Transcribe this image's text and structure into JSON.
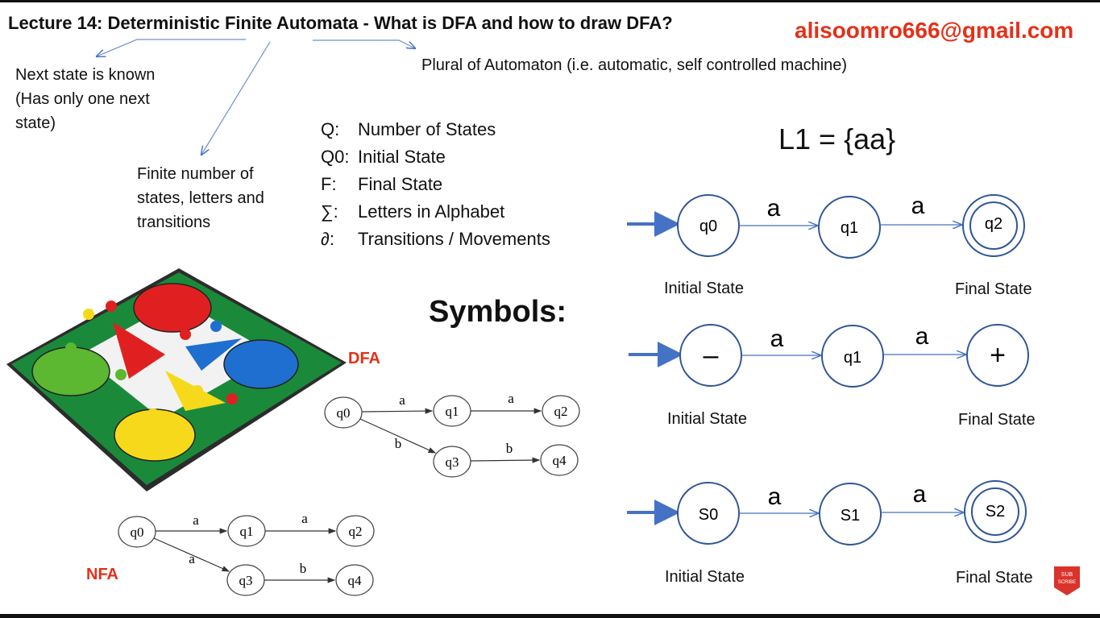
{
  "header": {
    "title": "Lecture 14: Deterministic Finite Automata - What is DFA and how to draw DFA?",
    "email": "alisoomro666@gmail.com"
  },
  "annotations": {
    "deterministic": "Next state is known (Has only one next state)",
    "finite": "Finite number of states, letters and transitions",
    "automata": "Plural of Automaton (i.e. automatic,  self controlled machine)"
  },
  "definitions": [
    {
      "symbol": "Q:",
      "text": "Number of States"
    },
    {
      "symbol": "Q0:",
      "text": "Initial State"
    },
    {
      "symbol": "F:",
      "text": "Final State"
    },
    {
      "symbol": "∑:",
      "text": "Letters in Alphabet"
    },
    {
      "symbol": "∂:",
      "text": "Transitions / Movements"
    }
  ],
  "language": "L1 = {aa}",
  "symbols_heading": "Symbols:",
  "dfa_label": "DFA",
  "nfa_label": "NFA",
  "machines": [
    {
      "states": [
        "q0",
        "q1",
        "q2"
      ],
      "transitions": [
        "a",
        "a"
      ],
      "initial_caption": "Initial State",
      "final_caption": "Final State"
    },
    {
      "states": [
        "–",
        "q1",
        "+"
      ],
      "transitions": [
        "a",
        "a"
      ],
      "initial_caption": "Initial State",
      "final_caption": "Final State"
    },
    {
      "states": [
        "S0",
        "S1",
        "S2"
      ],
      "transitions": [
        "a",
        "a"
      ],
      "initial_caption": "Initial State",
      "final_caption": "Final State"
    }
  ],
  "dfa_example": {
    "states": [
      "q0",
      "q1",
      "q2",
      "q3",
      "q4"
    ],
    "transitions": [
      "a",
      "a",
      "b",
      "b"
    ]
  },
  "nfa_example": {
    "states": [
      "q0",
      "q1",
      "q2",
      "q3",
      "q4"
    ],
    "transitions": [
      "a",
      "a",
      "a",
      "b"
    ]
  },
  "badge": "SUB SCRIBE",
  "colors": {
    "accent": "#e53018",
    "state_stroke": "#2f5597",
    "arrow": "#4472c4"
  }
}
